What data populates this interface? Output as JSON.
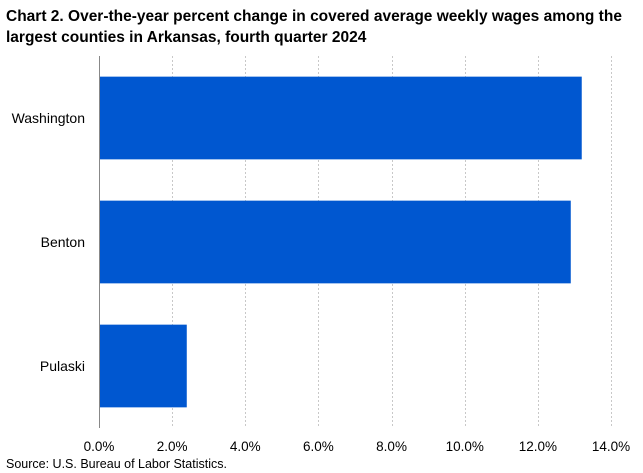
{
  "chart_data": {
    "type": "bar",
    "orientation": "horizontal",
    "title": "Chart 2. Over-the-year percent change in covered average weekly wages among the largest counties in Arkansas, fourth quarter 2024",
    "categories": [
      "Washington",
      "Benton",
      "Pulaski"
    ],
    "values": [
      13.2,
      12.9,
      2.4
    ],
    "xlim": [
      0,
      14
    ],
    "xticks": [
      0,
      2,
      4,
      6,
      8,
      10,
      12,
      14
    ],
    "xtick_labels": [
      "0.0%",
      "2.0%",
      "4.0%",
      "6.0%",
      "8.0%",
      "10.0%",
      "12.0%",
      "14.0%"
    ],
    "xlabel": "",
    "ylabel": "",
    "grid": "vertical-dashed",
    "legend": "none",
    "bar_color": "#0057D0",
    "source": "Source: U.S. Bureau of Labor Statistics."
  }
}
